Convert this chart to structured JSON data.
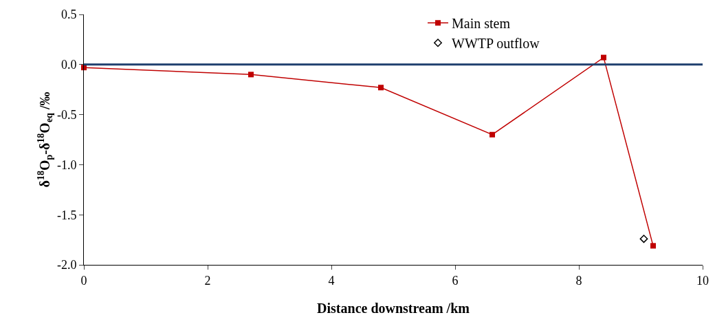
{
  "chart_data": {
    "type": "line",
    "xlabel": "Distance downstream /km",
    "ylabel": "δ$^{18}$O$_{p}$-δ$^{18}$O$_{eq}$ /‰",
    "xlim": [
      0,
      10
    ],
    "xticks": [
      0,
      2,
      4,
      6,
      8,
      10
    ],
    "ylim": [
      -2.0,
      0.5
    ],
    "yticks": [
      {
        "value": -2.0,
        "label": "-2.0"
      },
      {
        "value": -1.5,
        "label": "-1.5"
      },
      {
        "value": -1.0,
        "label": "-1.0"
      },
      {
        "value": -0.5,
        "label": "-0.5"
      },
      {
        "value": 0,
        "label": "0.0"
      },
      {
        "value": 0.5,
        "label": "0.5"
      }
    ],
    "series": [
      {
        "name": "Main stem",
        "color": "#c00000",
        "marker": "square",
        "x": [
          0,
          2.7,
          4.8,
          6.6,
          8.4,
          9.2
        ],
        "values": [
          -0.03,
          -0.1,
          -0.23,
          -0.7,
          0.07,
          -1.81
        ]
      },
      {
        "name": "WWTP outflow",
        "type": "scatter",
        "color": "#000000",
        "marker": "diamond",
        "x": [
          9.05
        ],
        "values": [
          -1.74
        ]
      }
    ],
    "ref_lines": [
      {
        "axis": "y",
        "value": 0,
        "color": "#1f3f6e",
        "line_style": "solid"
      }
    ],
    "grid": false,
    "legend": "top right"
  }
}
